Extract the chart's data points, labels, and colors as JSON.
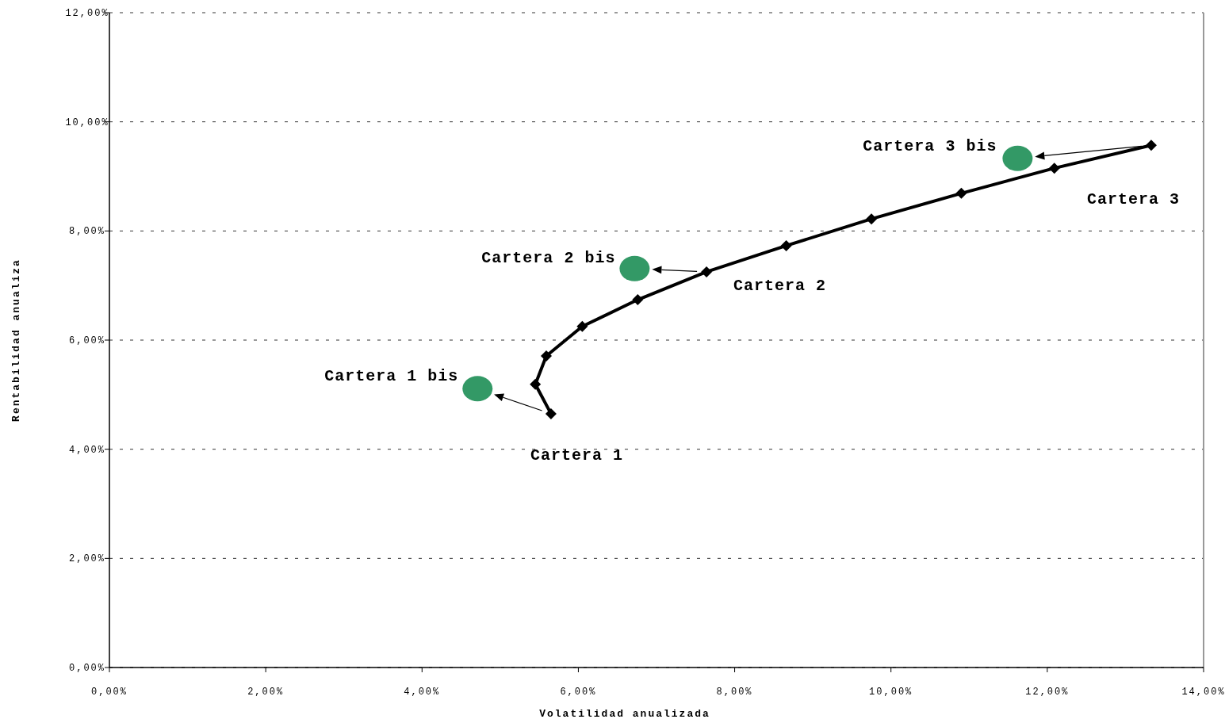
{
  "chart_data": {
    "type": "line",
    "xlabel": "Volatilidad anualizada",
    "ylabel": "Rentabilidad anualiza",
    "xlim": [
      0,
      14
    ],
    "ylim": [
      0,
      12
    ],
    "xticks": [
      {
        "value": 0,
        "label": "0,00%"
      },
      {
        "value": 2,
        "label": "2,00%"
      },
      {
        "value": 4,
        "label": "4,00%"
      },
      {
        "value": 6,
        "label": "6,00%"
      },
      {
        "value": 8,
        "label": "8,00%"
      },
      {
        "value": 10,
        "label": "10,00%"
      },
      {
        "value": 12,
        "label": "12,00%"
      },
      {
        "value": 14,
        "label": "14,00%"
      }
    ],
    "yticks": [
      {
        "value": 0,
        "label": "0,00%"
      },
      {
        "value": 2,
        "label": "2,00%"
      },
      {
        "value": 4,
        "label": "4,00%"
      },
      {
        "value": 6,
        "label": "6,00%"
      },
      {
        "value": 8,
        "label": "8,00%"
      },
      {
        "value": 10,
        "label": "10,00%"
      },
      {
        "value": 12,
        "label": "12,00%"
      }
    ],
    "grid": "y",
    "marker": "diamond",
    "line_style": "solid",
    "series": [
      {
        "color": "#000000",
        "x": [
          5.65,
          5.45,
          5.59,
          6.05,
          6.76,
          7.64,
          8.66,
          9.75,
          10.9,
          12.09,
          13.33
        ],
        "values": [
          4.65,
          5.19,
          5.71,
          6.25,
          6.74,
          7.25,
          7.73,
          8.22,
          8.69,
          9.15,
          9.57
        ]
      },
      {
        "type": "scatter",
        "marker": "circle",
        "color": "#339966",
        "x": [
          4.71,
          6.72,
          11.62
        ],
        "values": [
          5.11,
          7.31,
          9.33
        ]
      }
    ],
    "annotations": [
      {
        "text": "Cartera 1",
        "x": 5.65,
        "y": 4.65
      },
      {
        "text": "Cartera 1 bis",
        "x": 4.71,
        "y": 5.11
      },
      {
        "text": "Cartera 2",
        "x": 7.64,
        "y": 7.25
      },
      {
        "text": "Cartera 2 bis",
        "x": 6.72,
        "y": 7.31
      },
      {
        "text": "Cartera 3",
        "x": 13.33,
        "y": 9.57
      },
      {
        "text": "Cartera 3 bis",
        "x": 11.62,
        "y": 9.33
      }
    ]
  }
}
